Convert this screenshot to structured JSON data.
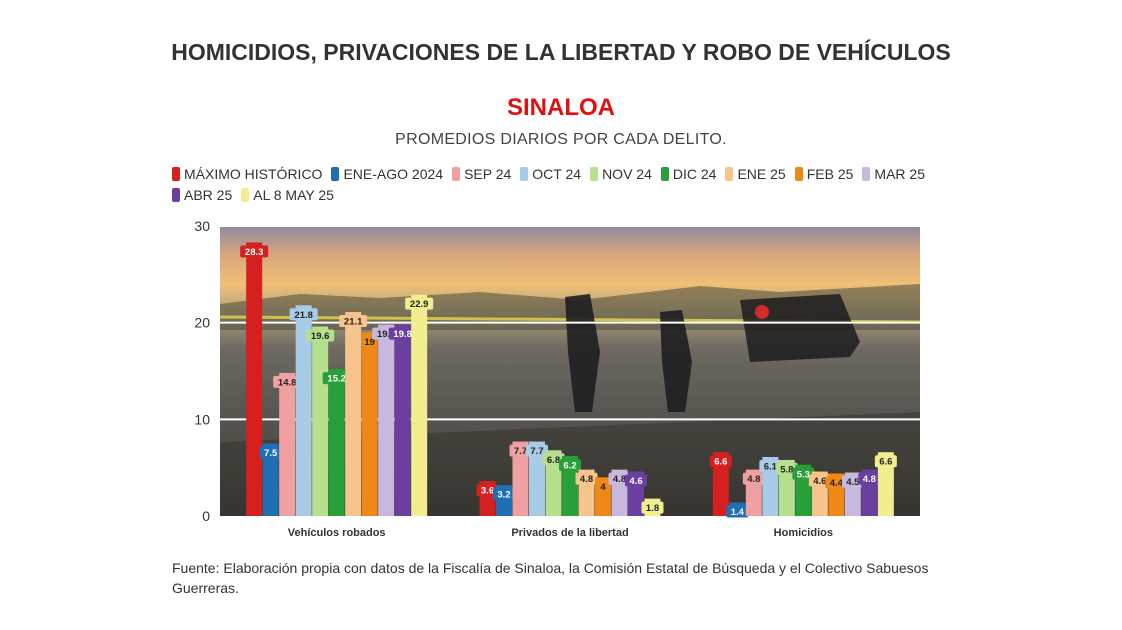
{
  "chart_data": {
    "type": "bar",
    "title": "HOMICIDIOS, PRIVACIONES DE LA LIBERTAD Y ROBO DE VEHÍCULOS",
    "subtitle_region": "SINALOA",
    "subtitle": "PROMEDIOS DIARIOS POR CADA DELITO.",
    "categories": [
      "Vehículos robados",
      "Privados de la libertad",
      "Homicidios"
    ],
    "ylim": [
      0,
      30
    ],
    "yticks": [
      0,
      10,
      20,
      30
    ],
    "grid": true,
    "legend_position": "top",
    "series": [
      {
        "name": "MÁXIMO HISTÓRICO",
        "color": "#d62020",
        "values": [
          28.3,
          3.6,
          6.6
        ]
      },
      {
        "name": "ENE-AGO 2024",
        "color": "#1f6fb4",
        "values": [
          7.5,
          3.2,
          1.4
        ]
      },
      {
        "name": "SEP 24",
        "color": "#f0a0a0",
        "values": [
          14.8,
          7.7,
          4.8
        ]
      },
      {
        "name": "OCT 24",
        "color": "#a8cce8",
        "values": [
          21.8,
          7.7,
          6.1
        ]
      },
      {
        "name": "NOV 24",
        "color": "#b6e08e",
        "values": [
          19.6,
          6.8,
          5.8
        ]
      },
      {
        "name": "DIC 24",
        "color": "#28a03a",
        "values": [
          15.2,
          6.2,
          5.3
        ]
      },
      {
        "name": "ENE 25",
        "color": "#f7c48e",
        "values": [
          21.1,
          4.8,
          4.6
        ]
      },
      {
        "name": "FEB 25",
        "color": "#f08818",
        "values": [
          19,
          4,
          4.4
        ]
      },
      {
        "name": "MAR 25",
        "color": "#c8b8de",
        "values": [
          19.8,
          4.8,
          4.5
        ]
      },
      {
        "name": "ABR 25",
        "color": "#6a3fa0",
        "values": [
          19.8,
          4.6,
          4.8
        ]
      },
      {
        "name": "AL 8 MAY 25",
        "color": "#f2ee90",
        "values": [
          22.9,
          1.8,
          6.6
        ]
      }
    ]
  },
  "footer": {
    "source": "Fuente: Elaboración propia con datos de la Fiscalía de Sinaloa, la Comisión Estatal de Búsqueda y el Colectivo Sabuesos Guerreras."
  }
}
